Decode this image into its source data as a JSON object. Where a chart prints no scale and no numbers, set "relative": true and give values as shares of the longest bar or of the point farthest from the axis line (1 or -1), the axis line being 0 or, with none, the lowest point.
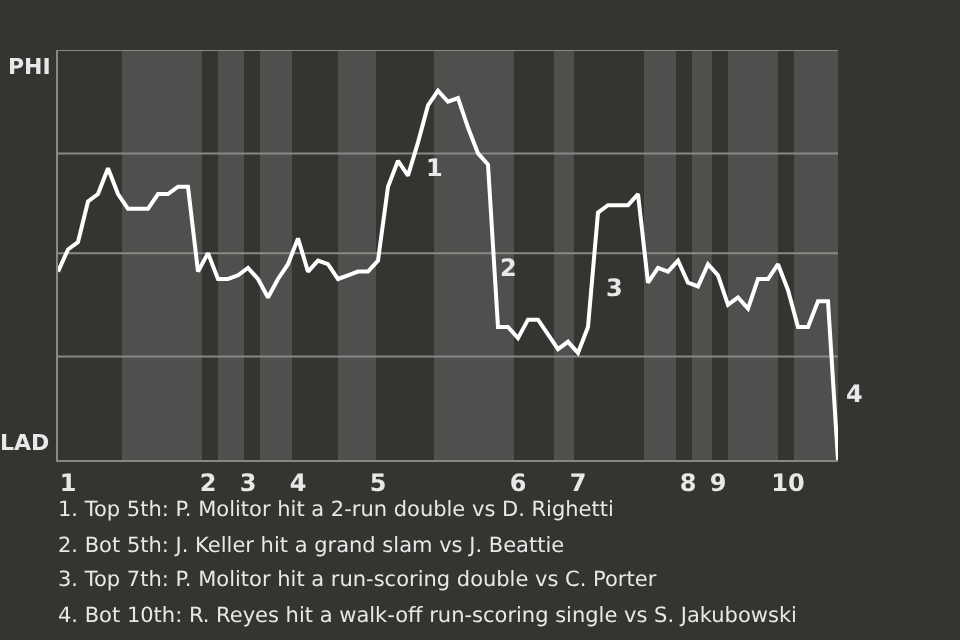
{
  "chart_data": {
    "type": "line",
    "relative": true,
    "categories": [
      null,
      "1",
      null,
      null,
      null,
      null,
      null,
      null,
      null,
      null,
      null,
      null,
      null,
      null,
      null,
      "2",
      null,
      null,
      null,
      "3",
      null,
      null,
      null,
      null,
      "4",
      null,
      null,
      null,
      null,
      null,
      null,
      null,
      "5",
      null,
      null,
      null,
      null,
      null,
      null,
      null,
      null,
      null,
      null,
      null,
      null,
      null,
      "6",
      null,
      null,
      null,
      null,
      null,
      "7",
      null,
      null,
      null,
      null,
      null,
      null,
      null,
      null,
      null,
      null,
      "8",
      null,
      null,
      "9",
      null,
      null,
      null,
      null,
      null,
      null,
      "10",
      null,
      null,
      null,
      null,
      null
    ],
    "series": [
      {
        "color": "#ffffff",
        "values": [
          0.51,
          0.57,
          0.59,
          0.7,
          0.72,
          0.79,
          0.72,
          0.68,
          0.68,
          0.68,
          0.72,
          0.72,
          0.74,
          0.74,
          0.51,
          0.56,
          0.49,
          0.49,
          0.5,
          0.52,
          0.49,
          0.44,
          0.49,
          0.53,
          0.6,
          0.51,
          0.54,
          0.53,
          0.49,
          0.5,
          0.51,
          0.51,
          0.54,
          0.74,
          0.81,
          0.77,
          0.86,
          0.96,
          1,
          0.97,
          0.98,
          0.9,
          0.83,
          0.8,
          0.36,
          0.36,
          0.33,
          0.38,
          0.38,
          0.34,
          0.3,
          0.32,
          0.29,
          0.36,
          0.67,
          0.69,
          0.69,
          0.69,
          0.72,
          0.48,
          0.52,
          0.51,
          0.54,
          0.48,
          0.47,
          0.53,
          0.5,
          0.42,
          0.44,
          0.41,
          0.49,
          0.49,
          0.53,
          0.46,
          0.36,
          0.36,
          0.43,
          0.43,
          0
        ]
      }
    ],
    "marker": "none",
    "line_style": "solid",
    "ref_lines": [
      {
        "axis": "y",
        "value": 0.28,
        "color": "#8a8886"
      },
      {
        "axis": "y",
        "value": 0.56,
        "color": "#8a8886"
      },
      {
        "axis": "y",
        "value": 0.83,
        "color": "#8a8886"
      },
      {
        "axis": "y",
        "value": 1.11,
        "color": "#8a8886"
      }
    ],
    "annotations": [
      "1",
      "2",
      "3",
      "4",
      "PHI",
      "LAD",
      "1. Top 5th: P. Molitor hit a 2-run double vs D. Righetti",
      "2. Bot 5th: J. Keller hit a grand slam vs J. Beattie",
      "3. Top 7th: P. Molitor hit a run-scoring double vs C. Porter",
      "4. Bot 10th: R. Reyes hit a walk-off run-scoring single vs S. Jakubowski"
    ]
  }
}
